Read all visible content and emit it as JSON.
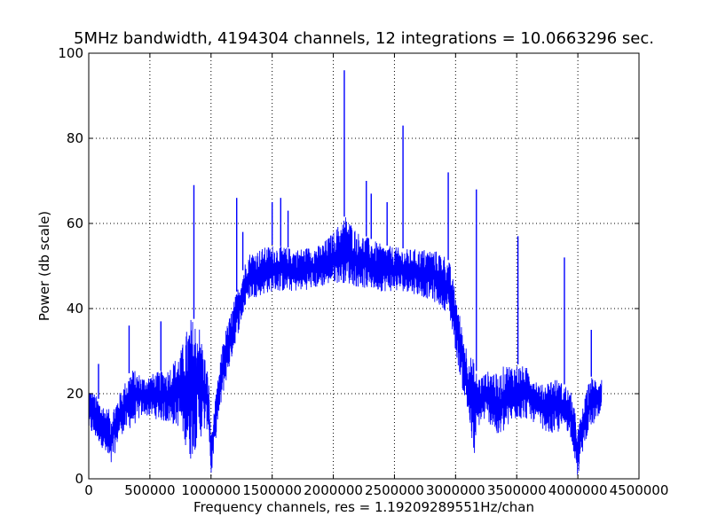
{
  "chart_data": {
    "type": "line",
    "title": "5MHz bandwidth, 4194304 channels, 12 integrations = 10.0663296 sec.",
    "xlabel": "Frequency channels, res = 1.19209289551Hz/chan",
    "ylabel": "Power (db scale)",
    "xlim": [
      0,
      4500000
    ],
    "ylim": [
      0,
      100
    ],
    "xticks": [
      0,
      500000,
      1000000,
      1500000,
      2000000,
      2500000,
      3000000,
      3500000,
      4000000,
      4500000
    ],
    "xtick_labels": [
      "0",
      "500000",
      "1000000",
      "1500000",
      "2000000",
      "2500000",
      "3000000",
      "3500000",
      "4000000",
      "4500000"
    ],
    "yticks": [
      0,
      20,
      40,
      60,
      80,
      100
    ],
    "ytick_labels": [
      "0",
      "20",
      "40",
      "60",
      "80",
      "100"
    ],
    "grid": true,
    "line_color": "#0000ff",
    "series": [
      {
        "name": "",
        "x": [
          0,
          100000,
          180000,
          250000,
          350000,
          450000,
          550000,
          650000,
          750000,
          830000,
          900000,
          980000,
          1000000,
          1050000,
          1100000,
          1200000,
          1300000,
          1400000,
          1500000,
          1700000,
          1900000,
          2000000,
          2100000,
          2200000,
          2400000,
          2600000,
          2800000,
          2900000,
          2950000,
          3000000,
          3050000,
          3100000,
          3150000,
          3180000,
          3250000,
          3300000,
          3350000,
          3400000,
          3500000,
          3600000,
          3700000,
          3800000,
          3900000,
          3950000,
          4000000,
          4050000,
          4100000,
          4194304
        ],
        "upper": [
          22,
          18,
          16,
          20,
          26,
          24,
          25,
          26,
          30,
          38,
          37,
          24,
          10,
          22,
          33,
          43,
          53,
          54,
          55,
          54,
          55,
          58,
          62,
          58,
          55,
          54,
          54,
          53,
          51,
          44,
          36,
          30,
          28,
          24,
          25,
          26,
          24,
          27,
          27,
          26,
          22,
          24,
          22,
          20,
          12,
          18,
          24,
          24
        ],
        "lower": [
          11,
          8,
          2,
          10,
          12,
          15,
          14,
          13,
          12,
          4,
          9,
          12,
          0,
          12,
          20,
          32,
          42,
          43,
          44,
          44,
          45,
          46,
          46,
          45,
          44,
          44,
          42,
          40,
          38,
          30,
          22,
          15,
          4,
          12,
          14,
          12,
          9,
          11,
          14,
          14,
          12,
          10,
          12,
          9,
          0,
          8,
          12,
          14
        ]
      }
    ],
    "spikes": [
      {
        "x": 80000,
        "y": 27
      },
      {
        "x": 330000,
        "y": 36
      },
      {
        "x": 590000,
        "y": 37
      },
      {
        "x": 860000,
        "y": 69
      },
      {
        "x": 1210000,
        "y": 66
      },
      {
        "x": 1260000,
        "y": 58
      },
      {
        "x": 1500000,
        "y": 65
      },
      {
        "x": 1570000,
        "y": 66
      },
      {
        "x": 1630000,
        "y": 63
      },
      {
        "x": 2090000,
        "y": 96
      },
      {
        "x": 2270000,
        "y": 70
      },
      {
        "x": 2310000,
        "y": 67
      },
      {
        "x": 2440000,
        "y": 65
      },
      {
        "x": 2570000,
        "y": 83
      },
      {
        "x": 2940000,
        "y": 72
      },
      {
        "x": 3170000,
        "y": 68
      },
      {
        "x": 3510000,
        "y": 57
      },
      {
        "x": 3890000,
        "y": 52
      },
      {
        "x": 4110000,
        "y": 35
      }
    ]
  }
}
